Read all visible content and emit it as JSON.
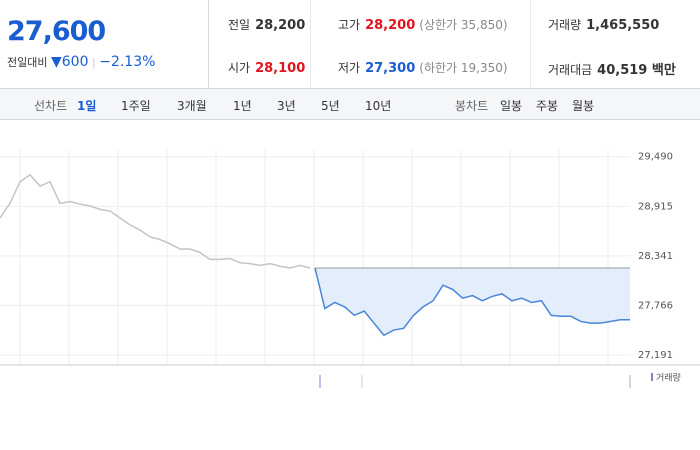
{
  "header": {
    "price": "27,600",
    "change_label": "전일대비",
    "change": "600",
    "change_pct": "−2.13%"
  },
  "stats": [
    [
      {
        "label": "전일",
        "value": "28,200"
      },
      {
        "label": "고가",
        "value": "28,200",
        "note": "(상한가 35,850)"
      },
      {
        "label": "거래량",
        "value": "1,465,550"
      }
    ],
    [
      {
        "label": "시가",
        "value": "28,100"
      },
      {
        "label": "저가",
        "value": "27,300",
        "note": "(하한가 19,350)"
      },
      {
        "label": "거래대금",
        "value": "40,519 백만"
      }
    ]
  ],
  "tabs": {
    "line_label": "선차트",
    "line": [
      "1일",
      "1주일",
      "3개월",
      "1년",
      "3년",
      "5년",
      "10년"
    ],
    "candle_label": "봉차트",
    "candle": [
      "일봉",
      "주봉",
      "월봉"
    ]
  },
  "chart": {
    "type": "line",
    "ylim": [
      27075,
      29800
    ],
    "yticks": [
      {
        "value": 29490,
        "label": "29,490"
      },
      {
        "value": 28915,
        "label": "28,915"
      },
      {
        "value": 28341,
        "label": "28,341"
      },
      {
        "value": 27766,
        "label": "27,766"
      },
      {
        "value": 27191,
        "label": "27,191"
      }
    ],
    "series": [
      {
        "color": "#c4c4c4",
        "values": [
          28780,
          28950,
          29200,
          29280,
          29150,
          29200,
          28950,
          28970,
          28940,
          28920,
          28880,
          28860,
          28780,
          28700,
          28640,
          28560,
          28530,
          28480,
          28420,
          28420,
          28380,
          28300,
          28300,
          28310,
          28260,
          28250,
          28230,
          28250,
          28220,
          28200,
          28230,
          28200
        ]
      },
      {
        "color": "#4a86d8",
        "values": [
          28200,
          27730,
          27800,
          27750,
          27650,
          27700,
          27560,
          27420,
          27480,
          27500,
          27650,
          27750,
          27820,
          28000,
          27950,
          27850,
          27880,
          27820,
          27870,
          27900,
          27820,
          27850,
          27800,
          27820,
          27650,
          27640,
          27640,
          27580,
          27560,
          27560,
          27580,
          27600,
          27600
        ]
      }
    ],
    "legend": "거래량"
  }
}
